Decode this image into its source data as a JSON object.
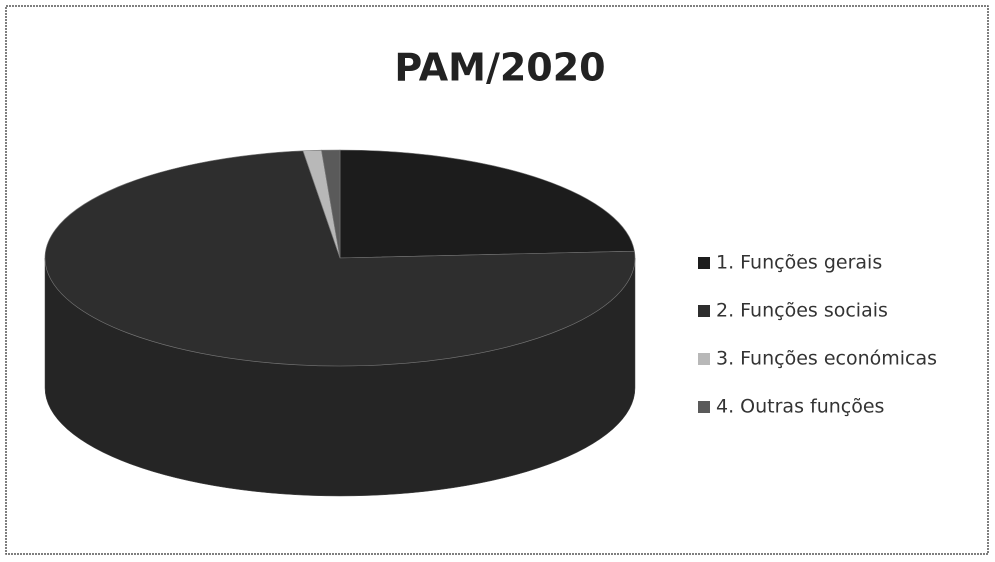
{
  "chart_data": {
    "type": "pie",
    "title": "PAM/2020",
    "categories": [
      "1. Funções gerais",
      "2. Funções sociais",
      "3. Funções económicas",
      "4. Outras funções"
    ],
    "values": [
      24,
      74,
      1,
      1
    ],
    "colors": [
      "#1c1c1c",
      "#2e2e2e",
      "#b8b8b8",
      "#5a5a5a"
    ],
    "legend": "right"
  }
}
